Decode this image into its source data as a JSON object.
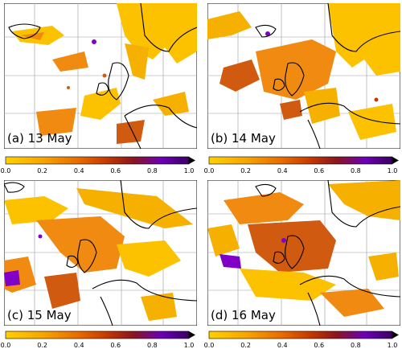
{
  "colorbar": {
    "stops": [
      "#ffd000",
      "#f7a600",
      "#e86a00",
      "#c53a00",
      "#8a1420",
      "#6c00b8",
      "#3a0060",
      "#000000"
    ],
    "ticks": [
      "0.0",
      "0.2",
      "0.4",
      "0.6",
      "0.8",
      "1.0"
    ]
  },
  "panels": [
    {
      "label": "(a) 13 May"
    },
    {
      "label": "(b) 14 May"
    },
    {
      "label": "(c) 15 May"
    },
    {
      "label": "(d) 16 May"
    }
  ],
  "colors": {
    "yellow": "#fcc200",
    "orange": "#f08a10",
    "dark_orange": "#d05a10",
    "purple": "#8000c8",
    "land_line": "#000000",
    "grid": "#999999"
  }
}
